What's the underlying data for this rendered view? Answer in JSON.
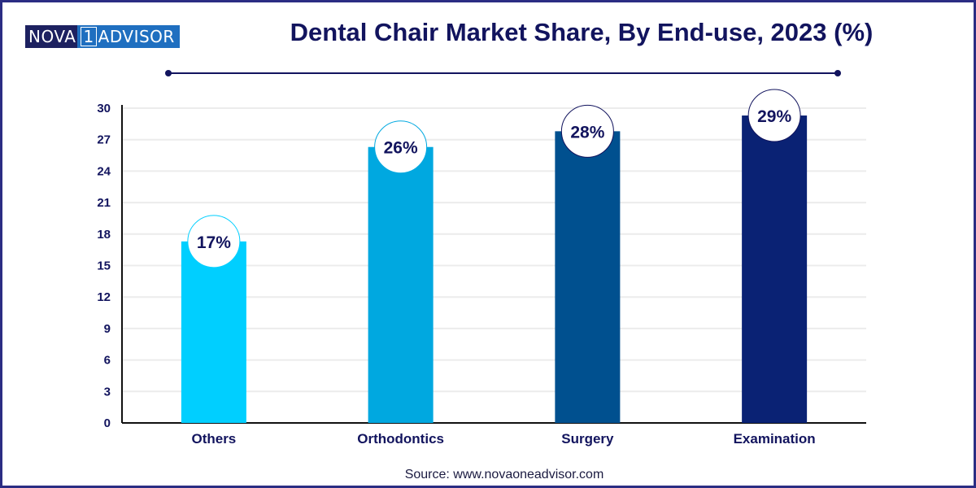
{
  "brand": {
    "part1": "NOVA",
    "part2": "1",
    "part3": "ADVISOR"
  },
  "source": "Source: www.novaoneadvisor.com",
  "chart_data": {
    "type": "bar",
    "title": "Dental Chair Market Share, By End-use, 2023 (%)",
    "xlabel": "",
    "ylabel": "",
    "categories": [
      "Others",
      "Orthodontics",
      "Surgery",
      "Examination"
    ],
    "values": [
      17.3,
      26.3,
      27.8,
      29.3
    ],
    "data_labels": [
      "17%",
      "26%",
      "28%",
      "29%"
    ],
    "colors": [
      "#00cfff",
      "#00a8e0",
      "#00508f",
      "#0a2274"
    ],
    "ylim": [
      0,
      30
    ],
    "yticks": [
      0,
      3,
      6,
      9,
      12,
      15,
      18,
      21,
      24,
      27,
      30
    ],
    "grid": true,
    "legend": "none"
  }
}
